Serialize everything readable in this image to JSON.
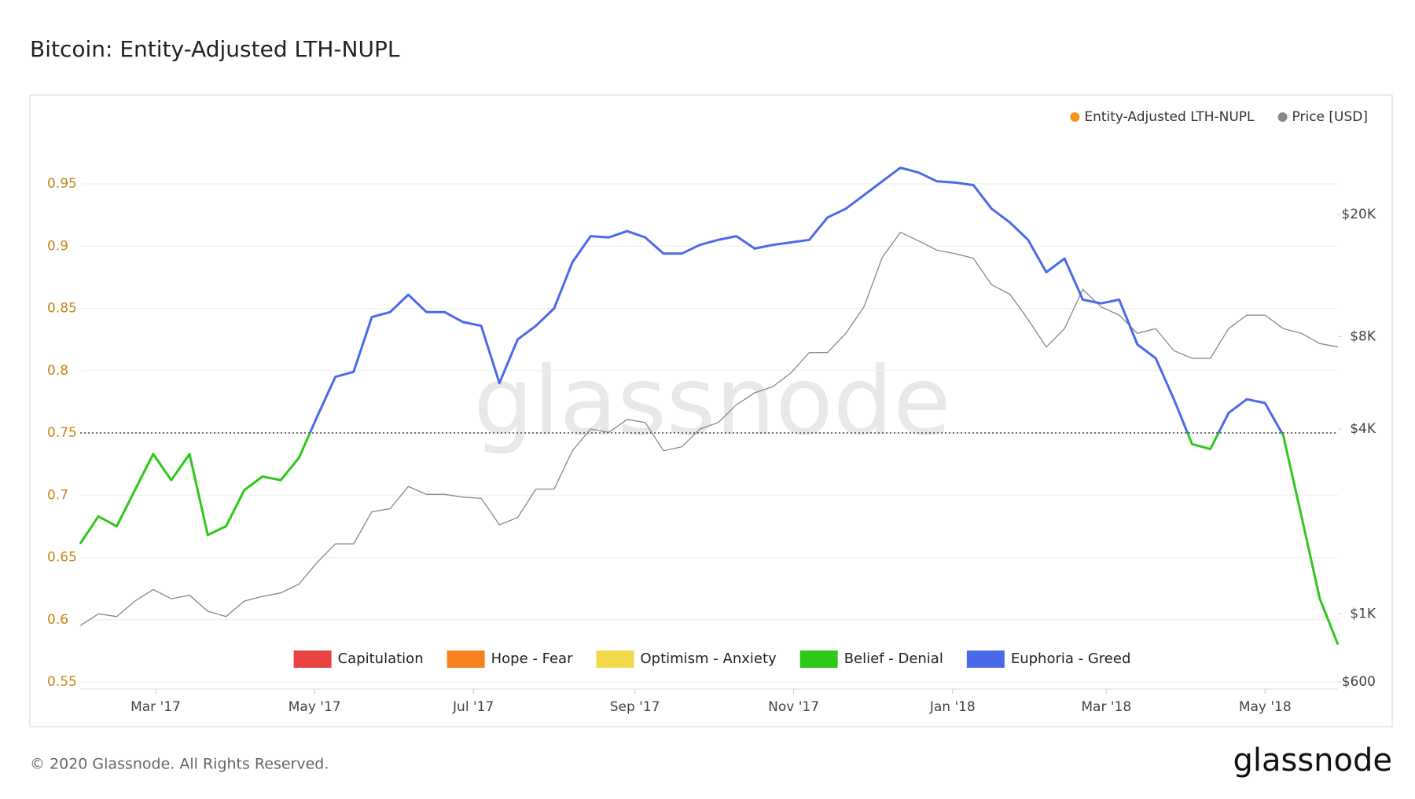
{
  "chart_data": {
    "type": "line",
    "title": "Bitcoin: Entity-Adjusted LTH-NUPL",
    "watermark": "glassnode",
    "footer": "© 2020 Glassnode. All Rights Reserved.",
    "logo": "glassnode",
    "xlim": [
      0,
      69
    ],
    "xticks": [
      {
        "value": 4.14,
        "label": "Mar '17"
      },
      {
        "value": 12.86,
        "label": "May '17"
      },
      {
        "value": 21.57,
        "label": "Jul '17"
      },
      {
        "value": 30.43,
        "label": "Sep '17"
      },
      {
        "value": 39.14,
        "label": "Nov '17"
      },
      {
        "value": 47.86,
        "label": "Jan '18"
      },
      {
        "value": 56.29,
        "label": "Mar '18"
      },
      {
        "value": 65,
        "label": "May '18"
      }
    ],
    "ylim": [
      0.55,
      0.95
    ],
    "yticks": [
      0.55,
      0.6,
      0.65,
      0.7,
      0.75,
      0.8,
      0.85,
      0.9,
      0.95
    ],
    "y2lim": [
      600,
      20000
    ],
    "y2scale": "log",
    "y2ticks": [
      {
        "value": 600,
        "label": "$600"
      },
      {
        "value": 1000,
        "label": "$1K"
      },
      {
        "value": 4000,
        "label": "$4K"
      },
      {
        "value": 8000,
        "label": "$8K"
      },
      {
        "value": 20000,
        "label": "$20K"
      }
    ],
    "grid": true,
    "threshold": 0.75,
    "zones": [
      {
        "name": "Capitulation",
        "color": "#e84343"
      },
      {
        "name": "Hope - Fear",
        "color": "#f5821f"
      },
      {
        "name": "Optimism - Anxiety",
        "color": "#f0d84a"
      },
      {
        "name": "Belief - Denial",
        "color": "#2ec81a"
      },
      {
        "name": "Euphoria - Greed",
        "color": "#4a6ae8"
      }
    ],
    "series": [
      {
        "name": "Entity-Adjusted LTH-NUPL",
        "color": "#f7931a",
        "values": [
          0.661,
          0.683,
          0.675,
          0.704,
          0.733,
          0.712,
          0.733,
          0.668,
          0.675,
          0.704,
          0.715,
          0.712,
          0.73,
          0.763,
          0.795,
          0.799,
          0.843,
          0.847,
          0.861,
          0.847,
          0.847,
          0.839,
          0.836,
          0.79,
          0.825,
          0.836,
          0.85,
          0.887,
          0.908,
          0.907,
          0.912,
          0.907,
          0.894,
          0.894,
          0.901,
          0.905,
          0.908,
          0.898,
          0.901,
          0.903,
          0.905,
          0.923,
          0.93,
          0.941,
          0.952,
          0.963,
          0.959,
          0.952,
          0.951,
          0.949,
          0.93,
          0.919,
          0.905,
          0.879,
          0.89,
          0.857,
          0.854,
          0.857,
          0.821,
          0.81,
          0.777,
          0.741,
          0.737,
          0.766,
          0.777,
          0.774,
          0.748,
          0.683,
          0.617,
          0.58
        ]
      },
      {
        "name": "Price [USD]",
        "color": "#888888",
        "axis": "y2",
        "values": [
          915,
          1000,
          980,
          1100,
          1200,
          1120,
          1150,
          1020,
          980,
          1100,
          1140,
          1170,
          1250,
          1470,
          1690,
          1690,
          2150,
          2200,
          2600,
          2450,
          2450,
          2400,
          2380,
          1950,
          2060,
          2550,
          2550,
          3400,
          4000,
          3900,
          4300,
          4200,
          3400,
          3500,
          4000,
          4200,
          4800,
          5250,
          5500,
          6100,
          7100,
          7100,
          8200,
          10000,
          14500,
          17500,
          16400,
          15300,
          14900,
          14400,
          11800,
          11000,
          9100,
          7400,
          8500,
          11400,
          10000,
          9400,
          8200,
          8500,
          7200,
          6800,
          6800,
          8500,
          9400,
          9400,
          8500,
          8200,
          7600,
          7400
        ]
      }
    ]
  }
}
